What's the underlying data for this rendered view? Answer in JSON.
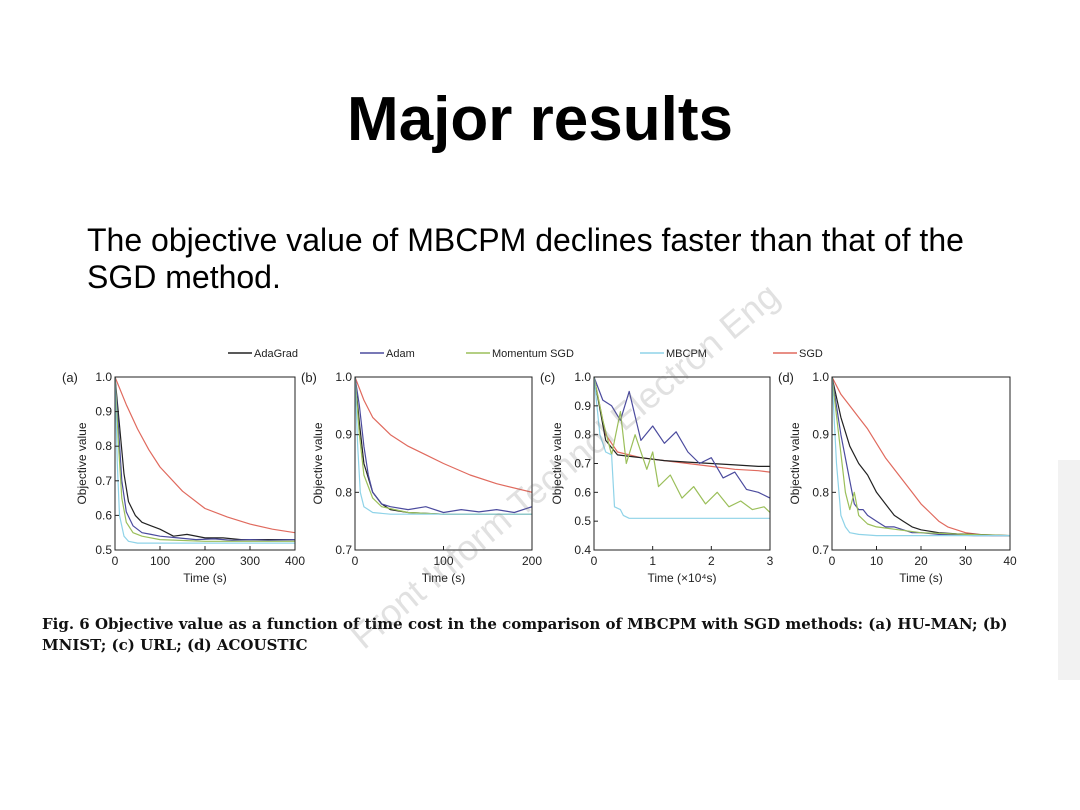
{
  "slide": {
    "title": "Major results",
    "body": "The objective value of MBCPM declines faster than that of the SGD method.",
    "caption": "Fig. 6  Objective value as a function of time cost in the comparison of MBCPM with SGD methods: (a) HU-MAN; (b) MNIST; (c) URL; (d) ACOUSTIC",
    "watermark": "Front Inform Technol Electron Eng"
  },
  "legend": [
    {
      "name": "AdaGrad",
      "color": "#222222"
    },
    {
      "name": "Adam",
      "color": "#4b4b9e"
    },
    {
      "name": "Momentum SGD",
      "color": "#9bbf5a"
    },
    {
      "name": "MBCPM",
      "color": "#8fd3e8"
    },
    {
      "name": "SGD",
      "color": "#e06a5e"
    }
  ],
  "chart_data": [
    {
      "type": "line",
      "panel": "(a)",
      "title": "",
      "xlabel": "Time (s)",
      "ylabel": "Objective value",
      "xlim": [
        0,
        400
      ],
      "ylim": [
        0.5,
        1.0
      ],
      "xticks": [
        0,
        100,
        200,
        300,
        400
      ],
      "yticks": [
        0.5,
        0.6,
        0.7,
        0.8,
        0.9,
        1.0
      ],
      "xtick_labels": [
        "0",
        "100",
        "200",
        "300",
        "400"
      ],
      "ytick_labels": [
        "0.5",
        "0.6",
        "0.7",
        "0.8",
        "0.9",
        "1.0"
      ],
      "series": [
        {
          "name": "SGD",
          "x": [
            0,
            25,
            50,
            75,
            100,
            150,
            200,
            250,
            300,
            350,
            400
          ],
          "y": [
            1.0,
            0.92,
            0.85,
            0.79,
            0.74,
            0.67,
            0.62,
            0.595,
            0.575,
            0.56,
            0.55
          ]
        },
        {
          "name": "AdaGrad",
          "x": [
            0,
            10,
            20,
            30,
            45,
            60,
            80,
            100,
            130,
            160,
            200,
            240,
            280,
            320,
            360,
            400
          ],
          "y": [
            1.0,
            0.86,
            0.72,
            0.64,
            0.6,
            0.58,
            0.57,
            0.56,
            0.54,
            0.545,
            0.535,
            0.535,
            0.53,
            0.53,
            0.53,
            0.53
          ]
        },
        {
          "name": "Adam",
          "x": [
            0,
            8,
            15,
            25,
            40,
            60,
            80,
            100,
            140,
            180,
            220,
            260,
            300,
            340,
            400
          ],
          "y": [
            1.0,
            0.85,
            0.7,
            0.61,
            0.57,
            0.55,
            0.545,
            0.54,
            0.535,
            0.53,
            0.532,
            0.528,
            0.53,
            0.528,
            0.53
          ]
        },
        {
          "name": "Momentum SGD",
          "x": [
            0,
            8,
            15,
            25,
            40,
            60,
            100,
            200,
            300,
            400
          ],
          "y": [
            1.0,
            0.8,
            0.65,
            0.58,
            0.55,
            0.54,
            0.53,
            0.525,
            0.525,
            0.525
          ]
        },
        {
          "name": "MBCPM",
          "x": [
            0,
            5,
            10,
            20,
            30,
            50,
            100,
            200,
            300,
            400
          ],
          "y": [
            1.0,
            0.75,
            0.6,
            0.54,
            0.525,
            0.52,
            0.52,
            0.52,
            0.52,
            0.52
          ]
        }
      ]
    },
    {
      "type": "line",
      "panel": "(b)",
      "title": "",
      "xlabel": "Time (s)",
      "ylabel": "Objective value",
      "xlim": [
        0,
        200
      ],
      "ylim": [
        0.7,
        1.0
      ],
      "xticks": [
        0,
        100,
        200
      ],
      "yticks": [
        0.7,
        0.8,
        0.9,
        1.0
      ],
      "xtick_labels": [
        "0",
        "100",
        "200"
      ],
      "ytick_labels": [
        "0.7",
        "0.8",
        "0.9",
        "1.0"
      ],
      "series": [
        {
          "name": "SGD",
          "x": [
            0,
            10,
            20,
            40,
            60,
            80,
            100,
            130,
            160,
            200
          ],
          "y": [
            1.0,
            0.96,
            0.93,
            0.9,
            0.88,
            0.865,
            0.85,
            0.83,
            0.815,
            0.8
          ]
        },
        {
          "name": "Adam",
          "x": [
            0,
            5,
            10,
            15,
            20,
            30,
            40,
            60,
            80,
            100,
            120,
            140,
            160,
            180,
            200
          ],
          "y": [
            1.0,
            0.95,
            0.88,
            0.83,
            0.8,
            0.78,
            0.775,
            0.77,
            0.775,
            0.765,
            0.77,
            0.766,
            0.77,
            0.765,
            0.775
          ]
        },
        {
          "name": "AdaGrad",
          "x": [
            0,
            5,
            10,
            20,
            30,
            40,
            60,
            100,
            150,
            200
          ],
          "y": [
            1.0,
            0.92,
            0.85,
            0.8,
            0.78,
            0.77,
            0.765,
            0.762,
            0.762,
            0.762
          ]
        },
        {
          "name": "Momentum SGD",
          "x": [
            0,
            5,
            10,
            20,
            30,
            60,
            100,
            150,
            200
          ],
          "y": [
            1.0,
            0.9,
            0.83,
            0.79,
            0.775,
            0.765,
            0.762,
            0.762,
            0.762
          ]
        },
        {
          "name": "MBCPM",
          "x": [
            0,
            3,
            6,
            10,
            20,
            40,
            100,
            150,
            200
          ],
          "y": [
            1.0,
            0.88,
            0.8,
            0.775,
            0.765,
            0.762,
            0.762,
            0.762,
            0.762
          ]
        }
      ]
    },
    {
      "type": "line",
      "panel": "(c)",
      "title": "",
      "xlabel": "Time (×10⁴s)",
      "ylabel": "Objective value",
      "xlim": [
        0,
        3
      ],
      "ylim": [
        0.4,
        1.0
      ],
      "xticks": [
        0,
        1,
        2,
        3
      ],
      "yticks": [
        0.4,
        0.5,
        0.6,
        0.7,
        0.8,
        0.9,
        1.0
      ],
      "xtick_labels": [
        "0",
        "1",
        "2",
        "3"
      ],
      "ytick_labels": [
        "0.4",
        "0.5",
        "0.6",
        "0.7",
        "0.8",
        "0.9",
        "1.0"
      ],
      "series": [
        {
          "name": "SGD",
          "x": [
            0,
            0.2,
            0.4,
            0.8,
            1.2,
            1.6,
            2.0,
            2.4,
            2.8,
            3.0
          ],
          "y": [
            1.0,
            0.8,
            0.74,
            0.72,
            0.71,
            0.7,
            0.69,
            0.68,
            0.675,
            0.67
          ]
        },
        {
          "name": "AdaGrad",
          "x": [
            0,
            0.2,
            0.4,
            0.8,
            1.2,
            1.6,
            2.0,
            2.4,
            2.8,
            3.0
          ],
          "y": [
            1.0,
            0.78,
            0.73,
            0.72,
            0.71,
            0.705,
            0.7,
            0.695,
            0.69,
            0.69
          ]
        },
        {
          "name": "Adam",
          "x": [
            0,
            0.15,
            0.3,
            0.45,
            0.6,
            0.8,
            1.0,
            1.2,
            1.4,
            1.6,
            1.8,
            2.0,
            2.2,
            2.4,
            2.6,
            2.8,
            3.0
          ],
          "y": [
            1.0,
            0.92,
            0.9,
            0.85,
            0.95,
            0.78,
            0.83,
            0.77,
            0.81,
            0.74,
            0.7,
            0.72,
            0.65,
            0.67,
            0.61,
            0.6,
            0.58
          ]
        },
        {
          "name": "Momentum SGD",
          "x": [
            0,
            0.15,
            0.3,
            0.45,
            0.55,
            0.7,
            0.9,
            1.0,
            1.1,
            1.3,
            1.5,
            1.7,
            1.9,
            2.1,
            2.3,
            2.5,
            2.7,
            2.9,
            3.0
          ],
          "y": [
            1.0,
            0.85,
            0.73,
            0.88,
            0.7,
            0.8,
            0.68,
            0.74,
            0.62,
            0.66,
            0.58,
            0.62,
            0.56,
            0.6,
            0.55,
            0.57,
            0.54,
            0.55,
            0.53
          ]
        },
        {
          "name": "MBCPM",
          "x": [
            0,
            0.1,
            0.2,
            0.3,
            0.35,
            0.45,
            0.5,
            0.6,
            1.0,
            2.0,
            3.0
          ],
          "y": [
            1.0,
            0.8,
            0.74,
            0.73,
            0.55,
            0.54,
            0.52,
            0.51,
            0.51,
            0.51,
            0.51
          ]
        }
      ]
    },
    {
      "type": "line",
      "panel": "(d)",
      "title": "",
      "xlabel": "Time (s)",
      "ylabel": "Objective value",
      "xlim": [
        0,
        40
      ],
      "ylim": [
        0.7,
        1.0
      ],
      "xticks": [
        0,
        10,
        20,
        30,
        40
      ],
      "yticks": [
        0.7,
        0.8,
        0.9,
        1.0
      ],
      "xtick_labels": [
        "0",
        "10",
        "20",
        "30",
        "40"
      ],
      "ytick_labels": [
        "0.7",
        "0.8",
        "0.9",
        "1.0"
      ],
      "series": [
        {
          "name": "SGD",
          "x": [
            0,
            2,
            4,
            6,
            8,
            10,
            12,
            14,
            16,
            18,
            20,
            22,
            24,
            26,
            28,
            30,
            32,
            34,
            36,
            38,
            40
          ],
          "y": [
            1.0,
            0.97,
            0.95,
            0.93,
            0.91,
            0.885,
            0.86,
            0.84,
            0.82,
            0.8,
            0.78,
            0.765,
            0.75,
            0.74,
            0.735,
            0.73,
            0.728,
            0.726,
            0.725,
            0.725,
            0.725
          ]
        },
        {
          "name": "AdaGrad",
          "x": [
            0,
            2,
            4,
            6,
            8,
            10,
            12,
            14,
            16,
            18,
            20,
            24,
            28,
            32,
            36,
            40
          ],
          "y": [
            1.0,
            0.93,
            0.88,
            0.85,
            0.83,
            0.8,
            0.78,
            0.76,
            0.75,
            0.74,
            0.735,
            0.73,
            0.728,
            0.727,
            0.726,
            0.725
          ]
        },
        {
          "name": "Adam",
          "x": [
            0,
            2,
            4,
            5,
            6,
            7,
            8,
            10,
            12,
            14,
            16,
            18,
            20,
            24,
            28,
            32,
            36,
            40
          ],
          "y": [
            1.0,
            0.9,
            0.82,
            0.78,
            0.77,
            0.77,
            0.76,
            0.75,
            0.74,
            0.74,
            0.735,
            0.73,
            0.73,
            0.727,
            0.726,
            0.725,
            0.725,
            0.725
          ]
        },
        {
          "name": "Momentum SGD",
          "x": [
            0,
            1.5,
            3,
            4,
            5,
            6,
            8,
            10,
            15,
            20,
            30,
            40
          ],
          "y": [
            1.0,
            0.9,
            0.8,
            0.77,
            0.8,
            0.76,
            0.745,
            0.74,
            0.735,
            0.73,
            0.727,
            0.725
          ]
        },
        {
          "name": "MBCPM",
          "x": [
            0,
            1,
            2,
            3,
            4,
            6,
            10,
            20,
            30,
            40
          ],
          "y": [
            1.0,
            0.85,
            0.76,
            0.74,
            0.73,
            0.727,
            0.725,
            0.725,
            0.725,
            0.725
          ]
        }
      ]
    }
  ]
}
